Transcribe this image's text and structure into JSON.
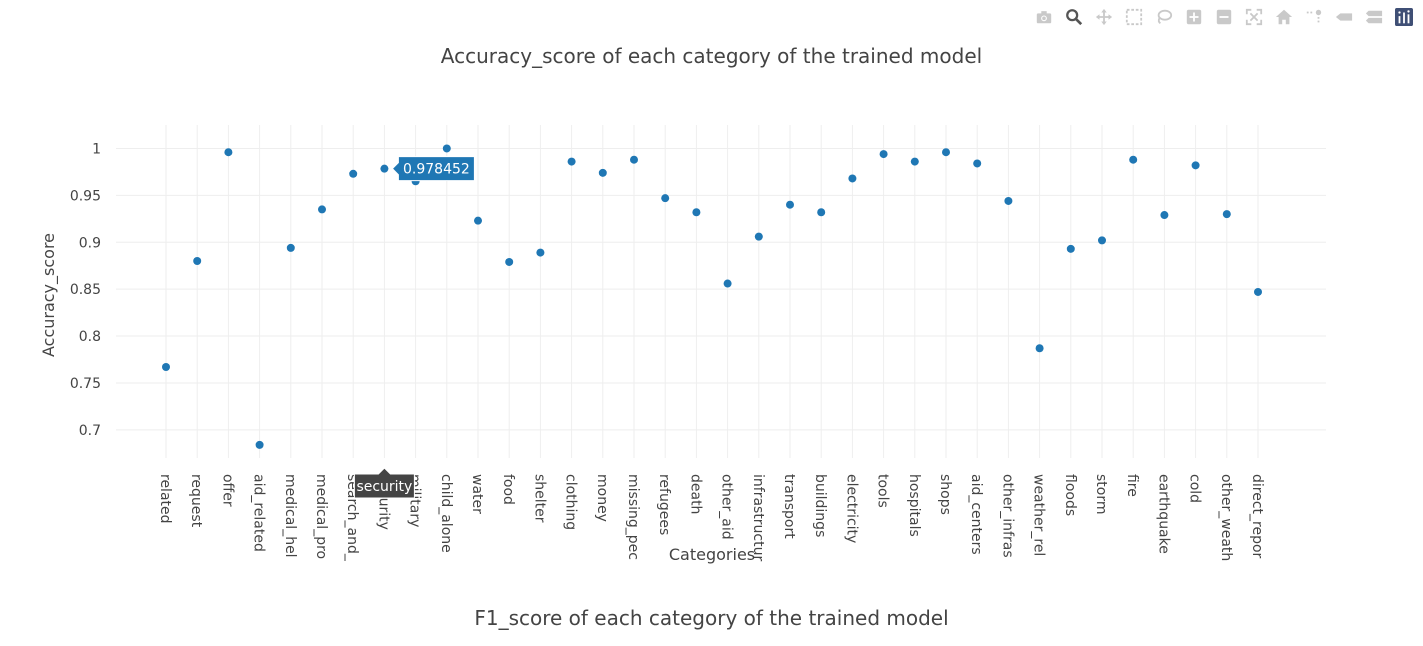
{
  "modebar": {
    "icons": [
      "camera-icon",
      "zoom-icon",
      "pan-icon",
      "box-select-icon",
      "lasso-icon",
      "zoom-in-icon",
      "zoom-out-icon",
      "autoscale-icon",
      "reset-axes-icon",
      "spike-lines-icon",
      "hover-closest-icon",
      "hover-compare-icon",
      "plotly-logo-icon"
    ]
  },
  "chart_data": {
    "type": "scatter",
    "title": "Accuracy_score of each category of the trained model",
    "xlabel": "Categories",
    "ylabel": "Accuracy_score",
    "ylim": [
      0.67,
      1.025
    ],
    "yticks": [
      0.7,
      0.75,
      0.8,
      0.85,
      0.9,
      0.95,
      1
    ],
    "ytick_labels": [
      "0.7",
      "0.75",
      "0.8",
      "0.85",
      "0.9",
      "0.95",
      "1"
    ],
    "grid": true,
    "color": "#1f77b4",
    "categories": [
      "related",
      "request",
      "offer",
      "aid_related",
      "medical_hel",
      "medical_pro",
      "search_and_",
      "security",
      "military",
      "child_alone",
      "water",
      "food",
      "shelter",
      "clothing",
      "money",
      "missing_pec",
      "refugees",
      "death",
      "other_aid",
      "infrastructur",
      "transport",
      "buildings",
      "electricity",
      "tools",
      "hospitals",
      "shops",
      "aid_centers",
      "other_infras",
      "weather_rel",
      "floods",
      "storm",
      "fire",
      "earthquake",
      "cold",
      "other_weath",
      "direct_repor"
    ],
    "values": [
      0.767,
      0.88,
      0.996,
      0.684,
      0.894,
      0.935,
      0.973,
      0.978452,
      0.965,
      1.0,
      0.923,
      0.879,
      0.889,
      0.986,
      0.974,
      0.988,
      0.947,
      0.932,
      0.856,
      0.906,
      0.94,
      0.932,
      0.968,
      0.994,
      0.986,
      0.996,
      0.984,
      0.944,
      0.787,
      0.893,
      0.902,
      0.988,
      0.929,
      0.982,
      0.93,
      0.847
    ],
    "hover": {
      "index": 7,
      "value_label": "0.978452",
      "category_label": "security"
    }
  },
  "second_chart_title": "F1_score of each category of the trained model"
}
